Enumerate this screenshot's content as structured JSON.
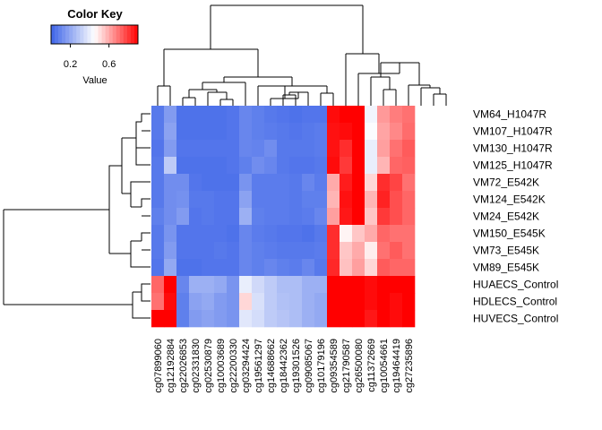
{
  "chart_data": {
    "type": "heatmap",
    "color_key": {
      "title": "Color Key",
      "xlabel": "Value",
      "ticks": [
        {
          "value": 0.2,
          "label": "0.2"
        },
        {
          "value": 0.6,
          "label": "0.6"
        }
      ],
      "range": [
        0.0,
        0.9
      ],
      "colors": {
        "low": "#3d64e8",
        "mid": "#ffffff",
        "high": "#ff0000"
      }
    },
    "rows": [
      "VM64_H1047R",
      "VM107_H1047R",
      "VM130_H1047R",
      "VM125_H1047R",
      "VM72_E542K",
      "VM124_E542K",
      "VM24_E542K",
      "VM150_E545K",
      "VM73_E545K",
      "VM89_E545K",
      "HUAECS_Control",
      "HDLECS_Control",
      "HUVECS_Control"
    ],
    "columns": [
      "cg07899060",
      "cg12192884",
      "cg22026853",
      "cg02331830",
      "cg02530879",
      "cg10003689",
      "cg22200330",
      "cg03294424",
      "cg19561297",
      "cg14688662",
      "cg18442362",
      "cg19301526",
      "cg09085067",
      "cg10179196",
      "cg09354589",
      "cg21790587",
      "cg26500080",
      "cg11372669",
      "cg10054661",
      "cg19464419",
      "cg27235896"
    ],
    "values": [
      [
        0.06,
        0.16,
        0.04,
        0.04,
        0.04,
        0.04,
        0.05,
        0.1,
        0.08,
        0.06,
        0.05,
        0.04,
        0.05,
        0.05,
        0.88,
        0.9,
        0.95,
        0.42,
        0.63,
        0.68,
        0.7
      ],
      [
        0.06,
        0.18,
        0.04,
        0.04,
        0.04,
        0.04,
        0.05,
        0.1,
        0.08,
        0.07,
        0.06,
        0.05,
        0.06,
        0.07,
        0.87,
        0.88,
        0.92,
        0.44,
        0.61,
        0.66,
        0.71
      ],
      [
        0.05,
        0.16,
        0.05,
        0.05,
        0.05,
        0.05,
        0.05,
        0.1,
        0.09,
        0.12,
        0.06,
        0.06,
        0.06,
        0.07,
        0.87,
        0.82,
        0.92,
        0.4,
        0.62,
        0.7,
        0.74
      ],
      [
        0.06,
        0.3,
        0.04,
        0.04,
        0.04,
        0.04,
        0.05,
        0.08,
        0.12,
        0.1,
        0.06,
        0.05,
        0.05,
        0.06,
        0.88,
        0.8,
        0.93,
        0.4,
        0.58,
        0.72,
        0.73
      ],
      [
        0.06,
        0.12,
        0.12,
        0.05,
        0.04,
        0.04,
        0.04,
        0.14,
        0.07,
        0.07,
        0.07,
        0.06,
        0.1,
        0.07,
        0.6,
        0.85,
        0.92,
        0.52,
        0.82,
        0.78,
        0.7
      ],
      [
        0.06,
        0.12,
        0.13,
        0.06,
        0.06,
        0.05,
        0.05,
        0.18,
        0.07,
        0.07,
        0.07,
        0.06,
        0.08,
        0.08,
        0.58,
        0.87,
        0.93,
        0.58,
        0.84,
        0.76,
        0.72
      ],
      [
        0.08,
        0.12,
        0.16,
        0.05,
        0.06,
        0.05,
        0.05,
        0.22,
        0.08,
        0.07,
        0.07,
        0.06,
        0.07,
        0.1,
        0.62,
        0.86,
        0.94,
        0.55,
        0.8,
        0.76,
        0.72
      ],
      [
        0.06,
        0.14,
        0.05,
        0.05,
        0.05,
        0.05,
        0.04,
        0.1,
        0.07,
        0.06,
        0.05,
        0.05,
        0.04,
        0.06,
        0.82,
        0.47,
        0.55,
        0.6,
        0.72,
        0.7,
        0.7
      ],
      [
        0.06,
        0.16,
        0.05,
        0.05,
        0.05,
        0.06,
        0.05,
        0.1,
        0.08,
        0.07,
        0.06,
        0.06,
        0.06,
        0.07,
        0.82,
        0.55,
        0.6,
        0.48,
        0.7,
        0.74,
        0.7
      ],
      [
        0.05,
        0.2,
        0.04,
        0.04,
        0.05,
        0.05,
        0.05,
        0.1,
        0.08,
        0.1,
        0.08,
        0.07,
        0.1,
        0.06,
        0.83,
        0.56,
        0.62,
        0.52,
        0.74,
        0.72,
        0.72
      ],
      [
        0.72,
        0.94,
        0.1,
        0.22,
        0.22,
        0.2,
        0.14,
        0.4,
        0.34,
        0.3,
        0.26,
        0.26,
        0.22,
        0.22,
        0.9,
        0.92,
        0.95,
        0.88,
        0.96,
        0.9,
        0.92
      ],
      [
        0.7,
        0.88,
        0.08,
        0.18,
        0.2,
        0.16,
        0.14,
        0.52,
        0.36,
        0.3,
        0.27,
        0.26,
        0.22,
        0.2,
        0.9,
        0.9,
        0.96,
        0.88,
        0.92,
        0.88,
        0.9
      ],
      [
        0.93,
        0.92,
        0.08,
        0.16,
        0.18,
        0.16,
        0.14,
        0.38,
        0.35,
        0.3,
        0.28,
        0.26,
        0.22,
        0.2,
        0.9,
        0.9,
        0.95,
        0.86,
        0.9,
        0.88,
        0.9
      ]
    ]
  }
}
